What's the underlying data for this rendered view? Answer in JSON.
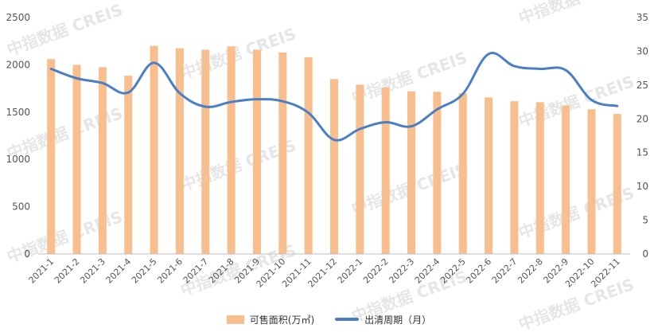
{
  "chart_data": {
    "type": "bar+line",
    "categories": [
      "2021-1",
      "2021-2",
      "2021-3",
      "2021-4",
      "2021-5",
      "2021-6",
      "2021-7",
      "2021-8",
      "2021-9",
      "2021-10",
      "2021-11",
      "2021-12",
      "2022-1",
      "2022-2",
      "2022-3",
      "2022-4",
      "2022-5",
      "2022-6",
      "2022-7",
      "2022-8",
      "2022-9",
      "2022-10",
      "2022-11"
    ],
    "series": [
      {
        "name": "可售面积(万㎡)",
        "type": "bar",
        "axis": "left",
        "color": "#F8BE8E",
        "values": [
          2060,
          2000,
          1975,
          1885,
          2200,
          2175,
          2160,
          2195,
          2160,
          2130,
          2080,
          1850,
          1790,
          1760,
          1720,
          1715,
          1700,
          1655,
          1615,
          1605,
          1570,
          1530,
          1480
        ]
      },
      {
        "name": "出清周期（月）",
        "type": "line",
        "axis": "right",
        "color": "#4A7FC8",
        "values": [
          27.4,
          26.0,
          25.3,
          23.9,
          28.3,
          23.8,
          21.8,
          22.5,
          22.9,
          22.6,
          20.9,
          16.9,
          18.5,
          19.5,
          18.9,
          21.4,
          23.7,
          29.6,
          27.8,
          27.4,
          27.2,
          22.8,
          21.9
        ]
      }
    ],
    "y_left": {
      "min": 0,
      "max": 2500,
      "ticks": [
        0,
        500,
        1000,
        1500,
        2000,
        2500
      ]
    },
    "y_right": {
      "min": 0,
      "max": 35,
      "ticks": [
        0,
        5,
        10,
        15,
        20,
        25,
        30,
        35
      ]
    },
    "grid": false,
    "legend_position": "bottom",
    "watermark": "中指数据 CREIS"
  }
}
